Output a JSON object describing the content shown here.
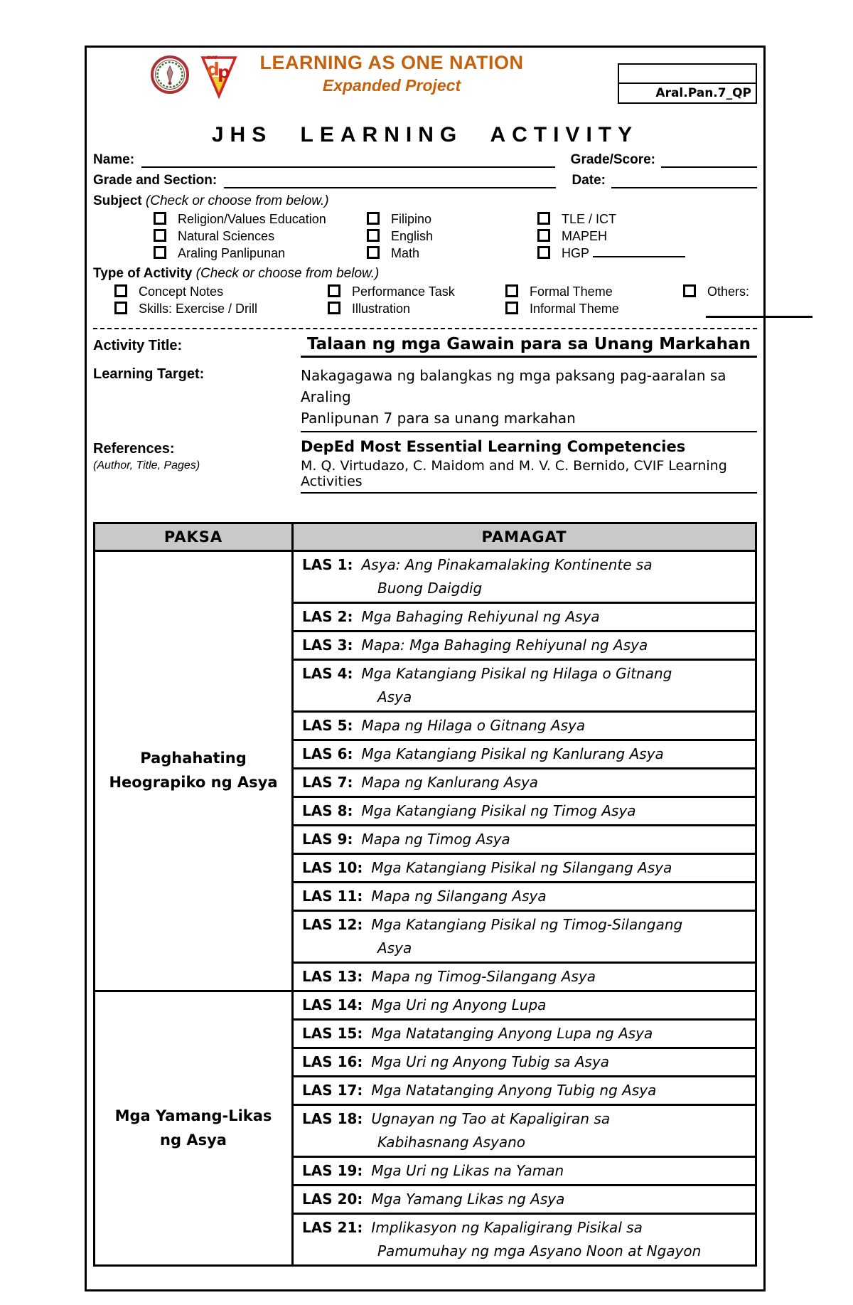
{
  "colors": {
    "accent": "#C4610D",
    "table_header_bg": "#C9C9C9"
  },
  "header": {
    "logos": {
      "seal": "school-seal",
      "dlp": "dlp-triangle-logo"
    },
    "org_title": "LEARNING AS ONE NATION",
    "org_subtitle": "Expanded Project",
    "code": "Aral.Pan.7_QP",
    "form_title": "JHS LEARNING ACTIVITY"
  },
  "fields": {
    "name_label": "Name:",
    "grade_score_label": "Grade/Score:",
    "grade_section_label": "Grade and Section:",
    "date_label": "Date:"
  },
  "subject": {
    "label": "Subject",
    "hint": "(Check or choose from below.)",
    "columns": [
      [
        "Religion/Values Education",
        "Natural Sciences",
        "Araling Panlipunan"
      ],
      [
        "Filipino",
        "English",
        "Math"
      ],
      [
        "TLE /  ICT",
        "MAPEH",
        "HGP"
      ]
    ]
  },
  "activity_type": {
    "label": "Type of Activity",
    "hint": "(Check or choose from below.)",
    "columns": [
      [
        "Concept Notes",
        "Skills:  Exercise / Drill"
      ],
      [
        "Performance Task",
        "Illustration"
      ],
      [
        "Formal Theme",
        "Informal Theme"
      ],
      [
        "Others:"
      ]
    ]
  },
  "details": {
    "activity_title_label": "Activity Title:",
    "activity_title": "Talaan ng mga Gawain para sa Unang Markahan",
    "learning_target_label": "Learning Target:",
    "learning_target_line1": "Nakagagawa ng balangkas ng mga paksang pag-aaralan sa Araling",
    "learning_target_line2": "Panlipunan 7 para sa unang markahan",
    "references_label": "References:",
    "references_hint": "(Author, Title, Pages)",
    "reference_line1": "DepEd Most Essential Learning Competencies",
    "reference_line2": "M. Q. Virtudazo, C. Maidom and M. V. C. Bernido, CVIF Learning Activities"
  },
  "table": {
    "col1_header": "PAKSA",
    "col2_header": "PAMAGAT",
    "groups": [
      {
        "paksa": "Paghahating Heograpiko ng Asya",
        "rows": [
          {
            "las": "LAS 1:",
            "title": "Asya: Ang Pinakamalaking Kontinente sa",
            "title2": "Buong Daigdig"
          },
          {
            "las": "LAS 2:",
            "title": "Mga Bahaging Rehiyunal ng Asya"
          },
          {
            "las": "LAS 3:",
            "title": "Mapa: Mga Bahaging Rehiyunal ng Asya"
          },
          {
            "las": "LAS 4:",
            "title": "Mga Katangiang Pisikal ng Hilaga o Gitnang",
            "title2": "Asya"
          },
          {
            "las": "LAS 5:",
            "title": "Mapa ng Hilaga o Gitnang Asya"
          },
          {
            "las": "LAS 6:",
            "title": "Mga Katangiang Pisikal ng Kanlurang Asya"
          },
          {
            "las": "LAS 7:",
            "title": "Mapa ng Kanlurang Asya"
          },
          {
            "las": "LAS 8:",
            "title": "Mga Katangiang Pisikal ng Timog Asya"
          },
          {
            "las": "LAS 9:",
            "title": "Mapa ng Timog Asya"
          },
          {
            "las": "LAS 10:",
            "title": "Mga Katangiang Pisikal ng Silangang Asya"
          },
          {
            "las": "LAS 11:",
            "title": "Mapa ng Silangang Asya"
          },
          {
            "las": "LAS 12:",
            "title": "Mga Katangiang Pisikal ng Timog-Silangang",
            "title2": "Asya"
          },
          {
            "las": "LAS 13:",
            "title": "Mapa ng Timog-Silangang Asya"
          }
        ]
      },
      {
        "paksa": "Mga Yamang-Likas ng Asya",
        "rows": [
          {
            "las": "LAS 14:",
            "title": "Mga Uri ng Anyong Lupa"
          },
          {
            "las": "LAS 15:",
            "title": "Mga Natatanging Anyong Lupa ng Asya"
          },
          {
            "las": "LAS 16:",
            "title": "Mga Uri ng Anyong Tubig sa Asya"
          },
          {
            "las": "LAS 17:",
            "title": "Mga Natatanging Anyong Tubig ng Asya"
          },
          {
            "las": "LAS 18:",
            "title": "Ugnayan ng Tao at Kapaligiran sa",
            "title2": "Kabihasnang Asyano"
          },
          {
            "las": "LAS 19:",
            "title": "Mga Uri ng Likas na Yaman"
          },
          {
            "las": "LAS 20:",
            "title": "Mga Yamang Likas ng Asya"
          },
          {
            "las": "LAS 21:",
            "title": "Implikasyon ng Kapaligirang Pisikal sa",
            "title2": "Pamumuhay ng mga Asyano Noon at Ngayon"
          }
        ]
      }
    ]
  }
}
